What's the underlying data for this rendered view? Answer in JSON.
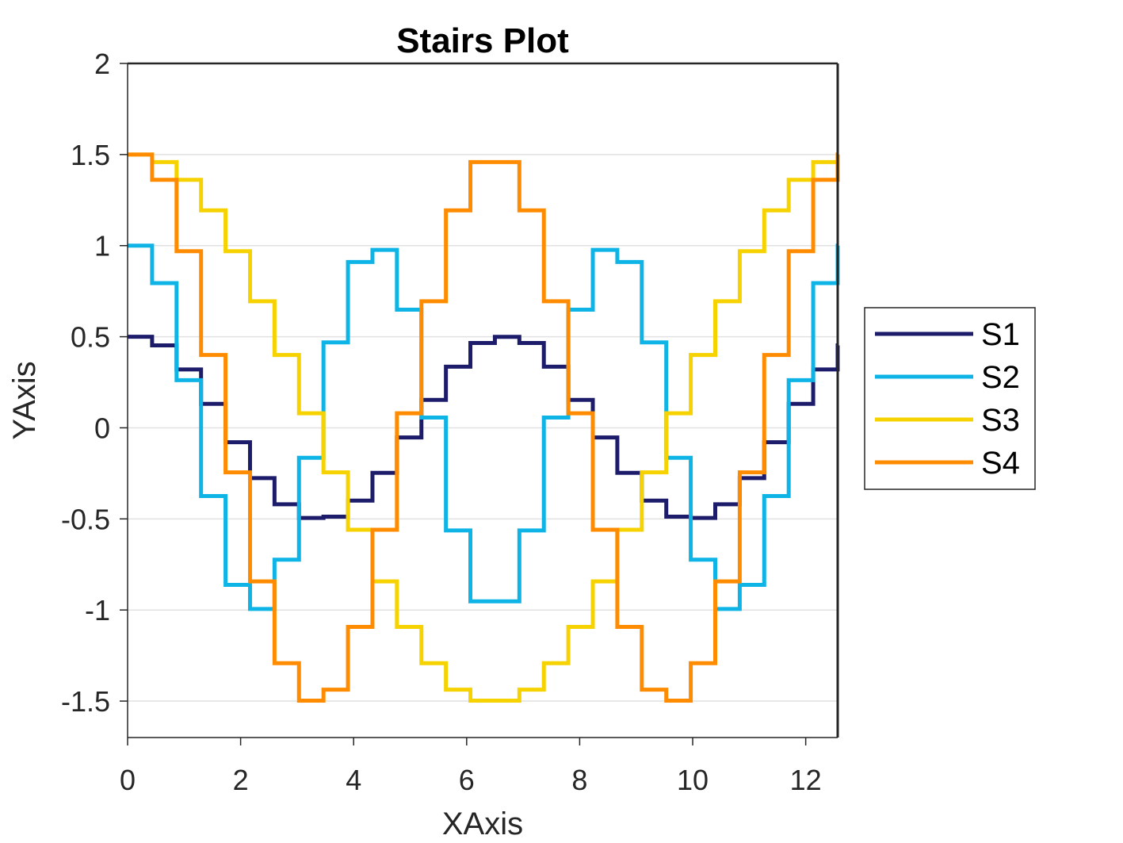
{
  "chart_data": {
    "type": "line",
    "subtype": "stairs",
    "title": "Stairs Plot",
    "xlabel": "XAxis",
    "ylabel": "YAxis",
    "xlim": [
      0,
      12.566
    ],
    "ylim": [
      -1.7,
      2
    ],
    "xticks": [
      0,
      2,
      4,
      6,
      8,
      10,
      12
    ],
    "xtick_labels": [
      "0",
      "2",
      "4",
      "6",
      "8",
      "10",
      "12"
    ],
    "yticks": [
      -1.5,
      -1,
      -0.5,
      0,
      0.5,
      1,
      1.5,
      2
    ],
    "ytick_labels": [
      "-1.5",
      "-1",
      "-0.5",
      "0",
      "0.5",
      "1",
      "1.5",
      "2"
    ],
    "grid": "horizontal",
    "legend_position": "right",
    "series": [
      {
        "name": "S1",
        "color": "#1c1c6b",
        "x": [
          0,
          0.4333,
          0.8666,
          1.2999,
          1.7332,
          2.1665,
          2.5998,
          3.0331,
          3.4664,
          3.8997,
          4.333,
          4.7663,
          5.1996,
          5.6329,
          6.0662,
          6.4995,
          6.9328,
          7.3661,
          7.7994,
          8.2327,
          8.666,
          9.0993,
          9.5326,
          9.9659,
          10.3992,
          10.8325,
          11.2658,
          11.6991,
          12.1324,
          12.5657
        ],
        "y": [
          0.5,
          0.4527,
          0.3204,
          0.1315,
          -0.0789,
          -0.2758,
          -0.4197,
          -0.4949,
          -0.4877,
          -0.3996,
          -0.2471,
          -0.0528,
          0.1532,
          0.3356,
          0.4656,
          0.4994,
          0.4656,
          0.3356,
          0.1532,
          -0.0528,
          -0.2471,
          -0.3996,
          -0.4877,
          -0.4949,
          -0.4197,
          -0.2758,
          -0.0789,
          0.1315,
          0.3204,
          0.4527
        ]
      },
      {
        "name": "S2",
        "color": "#0fb4e6",
        "x": [
          0,
          0.4333,
          0.8666,
          1.2999,
          1.7332,
          2.1665,
          2.5998,
          3.0331,
          3.4664,
          3.8997,
          4.333,
          4.7663,
          5.1996,
          5.6329,
          6.0662,
          6.4995,
          6.9328,
          7.3661,
          7.7994,
          8.2327,
          8.666,
          9.0993,
          9.5326,
          9.9659,
          10.3992,
          10.8325,
          11.2658,
          11.6991,
          12.1324,
          12.5657
        ],
        "y": [
          1.0,
          0.7942,
          0.2618,
          -0.3743,
          -0.8618,
          -0.9945,
          -0.7237,
          -0.1646,
          0.4691,
          0.9103,
          0.9766,
          0.6485,
          0.0565,
          -0.5633,
          -0.9523,
          -0.9523,
          -0.5633,
          0.0565,
          0.6485,
          0.9766,
          0.9103,
          0.4691,
          -0.1646,
          -0.7237,
          -0.9945,
          -0.8618,
          -0.3743,
          0.2618,
          0.7942,
          1.0
        ]
      },
      {
        "name": "S3",
        "color": "#f5d200",
        "x": [
          0,
          0.4333,
          0.8666,
          1.2999,
          1.7332,
          2.1665,
          2.5998,
          3.0331,
          3.4664,
          3.8997,
          4.333,
          4.7663,
          5.1996,
          5.6329,
          6.0662,
          6.4995,
          6.9328,
          7.3661,
          7.7994,
          8.2327,
          8.666,
          9.0993,
          9.5326,
          9.9659,
          10.3992,
          10.8325,
          11.2658,
          11.6991,
          12.1324,
          12.5657
        ],
        "y": [
          1.5,
          1.4584,
          1.3614,
          1.1937,
          0.9692,
          0.6945,
          0.3999,
          0.0799,
          -0.2446,
          -0.5595,
          -0.8432,
          -1.0929,
          -1.2918,
          -1.4373,
          -1.4978,
          -1.4978,
          -1.4373,
          -1.2918,
          -1.0929,
          -0.8432,
          -0.5595,
          -0.2446,
          0.0799,
          0.3999,
          0.6945,
          0.9692,
          1.1937,
          1.3614,
          1.4584,
          1.5
        ]
      },
      {
        "name": "S4",
        "color": "#ff8c00",
        "x": [
          0,
          0.4333,
          0.8666,
          1.2999,
          1.7332,
          2.1665,
          2.5998,
          3.0331,
          3.4664,
          3.8997,
          4.333,
          4.7663,
          5.1996,
          5.6329,
          6.0662,
          6.4995,
          6.9328,
          7.3661,
          7.7994,
          8.2327,
          8.666,
          9.0993,
          9.5326,
          9.9659,
          10.3992,
          10.8325,
          11.2658,
          11.6991,
          12.1324,
          12.5657
        ],
        "y": [
          1.5,
          1.3614,
          0.9692,
          0.3999,
          -0.2446,
          -0.8432,
          -1.2918,
          -1.4978,
          -1.4373,
          -1.0929,
          -0.5595,
          0.0799,
          0.6945,
          1.1937,
          1.4584,
          1.4584,
          1.1937,
          0.6945,
          0.0799,
          -0.5595,
          -1.0929,
          -1.4373,
          -1.4978,
          -1.2918,
          -0.8432,
          -0.2446,
          0.3999,
          0.9692,
          1.3614,
          1.5
        ]
      }
    ]
  }
}
